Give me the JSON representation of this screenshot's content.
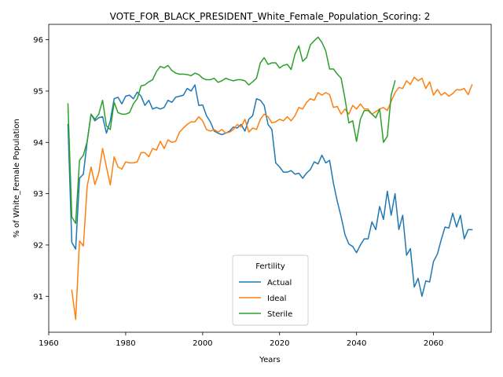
{
  "chart_data": {
    "type": "line",
    "title": "VOTE_FOR_BLACK_PRESIDENT_White_Female_Population_Scoring: 2",
    "xlabel": "Years",
    "ylabel": "% of White_Female Population",
    "xlim": [
      1960,
      2075
    ],
    "ylim": [
      90.3,
      96.3
    ],
    "xticks": [
      1960,
      1980,
      2000,
      2020,
      2040,
      2060
    ],
    "yticks": [
      91,
      92,
      93,
      94,
      95,
      96
    ],
    "grid": false,
    "legend": {
      "title": "Fertility",
      "position": "bottom-center"
    },
    "series": [
      {
        "name": "Actual",
        "color": "#1f77b4",
        "x": [
          1965,
          1966,
          1967,
          1968,
          1969,
          1970,
          1971,
          1972,
          1973,
          1974,
          1975,
          1976,
          1977,
          1978,
          1979,
          1980,
          1981,
          1982,
          1983,
          1984,
          1985,
          1986,
          1987,
          1988,
          1989,
          1990,
          1991,
          1992,
          1993,
          1994,
          1995,
          1996,
          1997,
          1998,
          1999,
          2000,
          2001,
          2002,
          2003,
          2004,
          2005,
          2006,
          2007,
          2008,
          2009,
          2010,
          2011,
          2012,
          2013,
          2014,
          2015,
          2016,
          2017,
          2018,
          2019,
          2020,
          2021,
          2022,
          2023,
          2024,
          2025,
          2026,
          2027,
          2028,
          2029,
          2030,
          2031,
          2032,
          2033,
          2034,
          2035,
          2036,
          2037,
          2038,
          2039,
          2040,
          2041,
          2042,
          2043,
          2044,
          2045,
          2046,
          2047,
          2048,
          2049,
          2050,
          2051,
          2052,
          2053,
          2054,
          2055,
          2056,
          2057,
          2058,
          2059,
          2060,
          2061,
          2062,
          2063,
          2064,
          2065,
          2066,
          2067,
          2068,
          2069,
          2070
        ],
        "y": [
          94.35,
          92.05,
          91.92,
          93.3,
          93.38,
          94.02,
          94.55,
          94.42,
          94.48,
          94.5,
          94.18,
          94.42,
          94.85,
          94.88,
          94.75,
          94.9,
          94.92,
          94.85,
          94.98,
          94.9,
          94.72,
          94.82,
          94.65,
          94.68,
          94.65,
          94.68,
          94.82,
          94.78,
          94.88,
          94.9,
          94.92,
          95.05,
          95.0,
          95.12,
          94.72,
          94.73,
          94.52,
          94.4,
          94.22,
          94.18,
          94.15,
          94.18,
          94.22,
          94.3,
          94.28,
          94.35,
          94.22,
          94.45,
          94.52,
          94.85,
          94.82,
          94.72,
          94.35,
          94.25,
          93.6,
          93.52,
          93.42,
          93.42,
          93.45,
          93.38,
          93.4,
          93.3,
          93.4,
          93.47,
          93.62,
          93.58,
          93.75,
          93.6,
          93.65,
          93.2,
          92.85,
          92.55,
          92.2,
          92.02,
          91.97,
          91.85,
          92.0,
          92.12,
          92.12,
          92.45,
          92.3,
          92.75,
          92.5,
          93.05,
          92.58,
          93.0,
          92.3,
          92.58,
          91.8,
          91.93,
          91.18,
          91.35,
          91.0,
          91.3,
          91.28,
          91.68,
          91.82,
          92.1,
          92.35,
          92.33,
          92.62,
          92.35,
          92.58,
          92.12,
          92.3,
          92.3
        ]
      },
      {
        "name": "Ideal",
        "color": "#ff7f0e",
        "x": [
          1966,
          1967,
          1968,
          1969,
          1970,
          1971,
          1972,
          1973,
          1974,
          1975,
          1976,
          1977,
          1978,
          1979,
          1980,
          1981,
          1982,
          1983,
          1984,
          1985,
          1986,
          1987,
          1988,
          1989,
          1990,
          1991,
          1992,
          1993,
          1994,
          1995,
          1996,
          1997,
          1998,
          1999,
          2000,
          2001,
          2002,
          2003,
          2004,
          2005,
          2006,
          2007,
          2008,
          2009,
          2010,
          2011,
          2012,
          2013,
          2014,
          2015,
          2016,
          2017,
          2018,
          2019,
          2020,
          2021,
          2022,
          2023,
          2024,
          2025,
          2026,
          2027,
          2028,
          2029,
          2030,
          2031,
          2032,
          2033,
          2034,
          2035,
          2036,
          2037,
          2038,
          2039,
          2040,
          2041,
          2042,
          2043,
          2044,
          2045,
          2046,
          2047,
          2048,
          2049,
          2050,
          2051,
          2052,
          2053,
          2054,
          2055,
          2056,
          2057,
          2058,
          2059,
          2060,
          2061,
          2062,
          2063,
          2064,
          2065,
          2066,
          2067,
          2068,
          2069,
          2070
        ],
        "y": [
          91.12,
          90.55,
          92.08,
          91.98,
          93.15,
          93.52,
          93.18,
          93.4,
          93.88,
          93.52,
          93.17,
          93.72,
          93.52,
          93.48,
          93.62,
          93.6,
          93.6,
          93.62,
          93.8,
          93.8,
          93.72,
          93.88,
          93.85,
          94.02,
          93.88,
          94.05,
          94.0,
          94.02,
          94.2,
          94.28,
          94.35,
          94.4,
          94.4,
          94.5,
          94.42,
          94.25,
          94.22,
          94.25,
          94.2,
          94.25,
          94.18,
          94.2,
          94.25,
          94.35,
          94.3,
          94.45,
          94.2,
          94.28,
          94.25,
          94.45,
          94.55,
          94.5,
          94.38,
          94.4,
          94.45,
          94.42,
          94.5,
          94.42,
          94.52,
          94.68,
          94.65,
          94.78,
          94.85,
          94.82,
          94.97,
          94.92,
          94.97,
          94.93,
          94.68,
          94.7,
          94.55,
          94.65,
          94.55,
          94.72,
          94.65,
          94.75,
          94.65,
          94.65,
          94.55,
          94.6,
          94.65,
          94.68,
          94.62,
          94.8,
          94.97,
          95.07,
          95.05,
          95.2,
          95.13,
          95.27,
          95.2,
          95.25,
          95.05,
          95.18,
          94.92,
          95.03,
          94.92,
          94.97,
          94.9,
          94.95,
          95.03,
          95.02,
          95.05,
          94.93,
          95.12
        ]
      },
      {
        "name": "Sterile",
        "color": "#2ca02c",
        "x": [
          1965,
          1966,
          1967,
          1968,
          1969,
          1970,
          1971,
          1972,
          1973,
          1974,
          1975,
          1976,
          1977,
          1978,
          1979,
          1980,
          1981,
          1982,
          1983,
          1984,
          1985,
          1986,
          1987,
          1988,
          1989,
          1990,
          1991,
          1992,
          1993,
          1994,
          1995,
          1996,
          1997,
          1998,
          1999,
          2000,
          2001,
          2002,
          2003,
          2004,
          2005,
          2006,
          2007,
          2008,
          2009,
          2010,
          2011,
          2012,
          2013,
          2014,
          2015,
          2016,
          2017,
          2018,
          2019,
          2020,
          2021,
          2022,
          2023,
          2024,
          2025,
          2026,
          2027,
          2028,
          2029,
          2030,
          2031,
          2032,
          2033,
          2034,
          2035,
          2036,
          2037,
          2038,
          2039,
          2040,
          2041,
          2042,
          2043,
          2044,
          2045,
          2046,
          2047,
          2048,
          2049,
          2050
        ],
        "y": [
          94.75,
          92.55,
          92.42,
          93.65,
          93.75,
          94.02,
          94.55,
          94.45,
          94.55,
          94.82,
          94.32,
          94.25,
          94.78,
          94.58,
          94.55,
          94.55,
          94.58,
          94.75,
          94.85,
          95.1,
          95.12,
          95.18,
          95.22,
          95.38,
          95.48,
          95.45,
          95.5,
          95.4,
          95.35,
          95.33,
          95.33,
          95.32,
          95.3,
          95.35,
          95.32,
          95.25,
          95.22,
          95.22,
          95.25,
          95.17,
          95.2,
          95.25,
          95.22,
          95.2,
          95.22,
          95.22,
          95.2,
          95.12,
          95.18,
          95.25,
          95.55,
          95.65,
          95.52,
          95.55,
          95.55,
          95.45,
          95.5,
          95.52,
          95.42,
          95.72,
          95.88,
          95.58,
          95.65,
          95.9,
          95.98,
          96.05,
          95.95,
          95.78,
          95.43,
          95.43,
          95.33,
          95.25,
          94.85,
          94.38,
          94.42,
          94.02,
          94.45,
          94.62,
          94.62,
          94.55,
          94.48,
          94.65,
          94.0,
          94.12,
          94.92,
          95.2
        ]
      }
    ]
  }
}
